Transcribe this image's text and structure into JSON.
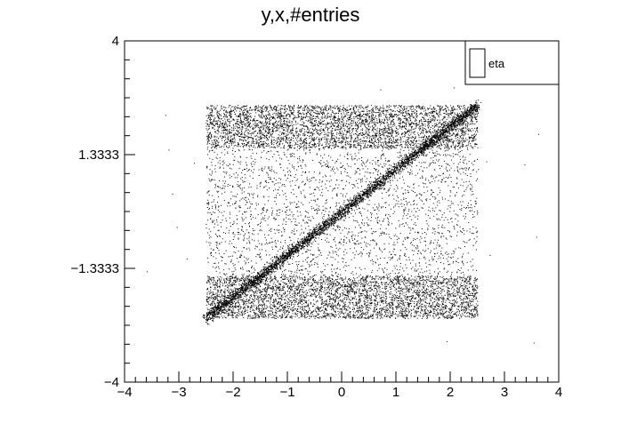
{
  "chart_data": {
    "type": "scatter",
    "title": "y,x,#entries",
    "xlabel": "",
    "ylabel": "",
    "xlim": [
      -4,
      4
    ],
    "ylim": [
      -4,
      4
    ],
    "x_ticks": [
      "−4",
      "−3",
      "−2",
      "−1",
      "0",
      "1",
      "2",
      "3",
      "4"
    ],
    "x_tick_values": [
      -4,
      -3,
      -2,
      -1,
      0,
      1,
      2,
      3,
      4
    ],
    "y_ticks": [
      "−4",
      "−1.3333",
      "1.3333",
      "4"
    ],
    "y_tick_values": [
      -4,
      -1.3333,
      1.3333,
      4
    ],
    "legend": {
      "entries": [
        "eta"
      ],
      "placement": "top-right"
    },
    "grid": false,
    "series": [
      {
        "name": "eta",
        "description_of_distribution": {
          "x_range": [
            -2.5,
            2.5
          ],
          "y_range": [
            -2.5,
            2.5
          ],
          "dense_bands_y": [
            [
              -2.5,
              -1.5
            ],
            [
              1.5,
              2.5
            ]
          ],
          "diagonal": "y = x"
        }
      }
    ]
  }
}
